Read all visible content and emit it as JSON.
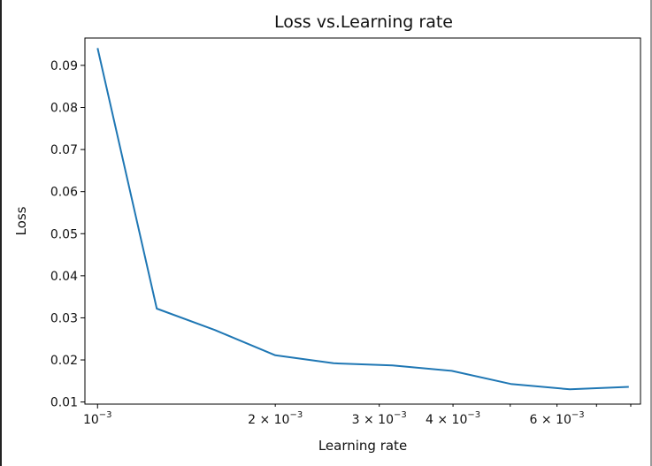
{
  "chart_data": {
    "type": "line",
    "title": "Loss vs.Learning rate",
    "xlabel": "Learning rate",
    "ylabel": "Loss",
    "xscale": "log",
    "xlim": [
      0.000952,
      0.00831
    ],
    "ylim": [
      0.0095,
      0.0965
    ],
    "grid": false,
    "line_color": "#1f77b4",
    "y_ticks": [
      {
        "value": 0.01,
        "label": "0.01"
      },
      {
        "value": 0.02,
        "label": "0.02"
      },
      {
        "value": 0.03,
        "label": "0.03"
      },
      {
        "value": 0.04,
        "label": "0.04"
      },
      {
        "value": 0.05,
        "label": "0.05"
      },
      {
        "value": 0.06,
        "label": "0.06"
      },
      {
        "value": 0.07,
        "label": "0.07"
      },
      {
        "value": 0.08,
        "label": "0.08"
      },
      {
        "value": 0.09,
        "label": "0.09"
      }
    ],
    "x_ticks": [
      {
        "value": 0.001,
        "mantissa": "",
        "base": "10",
        "exp": "−3"
      },
      {
        "value": 0.002,
        "mantissa": "2 × ",
        "base": "10",
        "exp": "−3"
      },
      {
        "value": 0.003,
        "mantissa": "3 × ",
        "base": "10",
        "exp": "−3"
      },
      {
        "value": 0.004,
        "mantissa": "4 × ",
        "base": "10",
        "exp": "−3"
      },
      {
        "value": 0.006,
        "mantissa": "6 × ",
        "base": "10",
        "exp": "−3"
      }
    ],
    "series": [
      {
        "x": [
          0.001,
          0.00126,
          0.00158,
          0.002,
          0.00251,
          0.00316,
          0.00398,
          0.00501,
          0.00631,
          0.00794
        ],
        "y": [
          0.0941,
          0.0322,
          0.0271,
          0.0211,
          0.0192,
          0.0187,
          0.0174,
          0.0143,
          0.013,
          0.0136
        ]
      }
    ]
  }
}
